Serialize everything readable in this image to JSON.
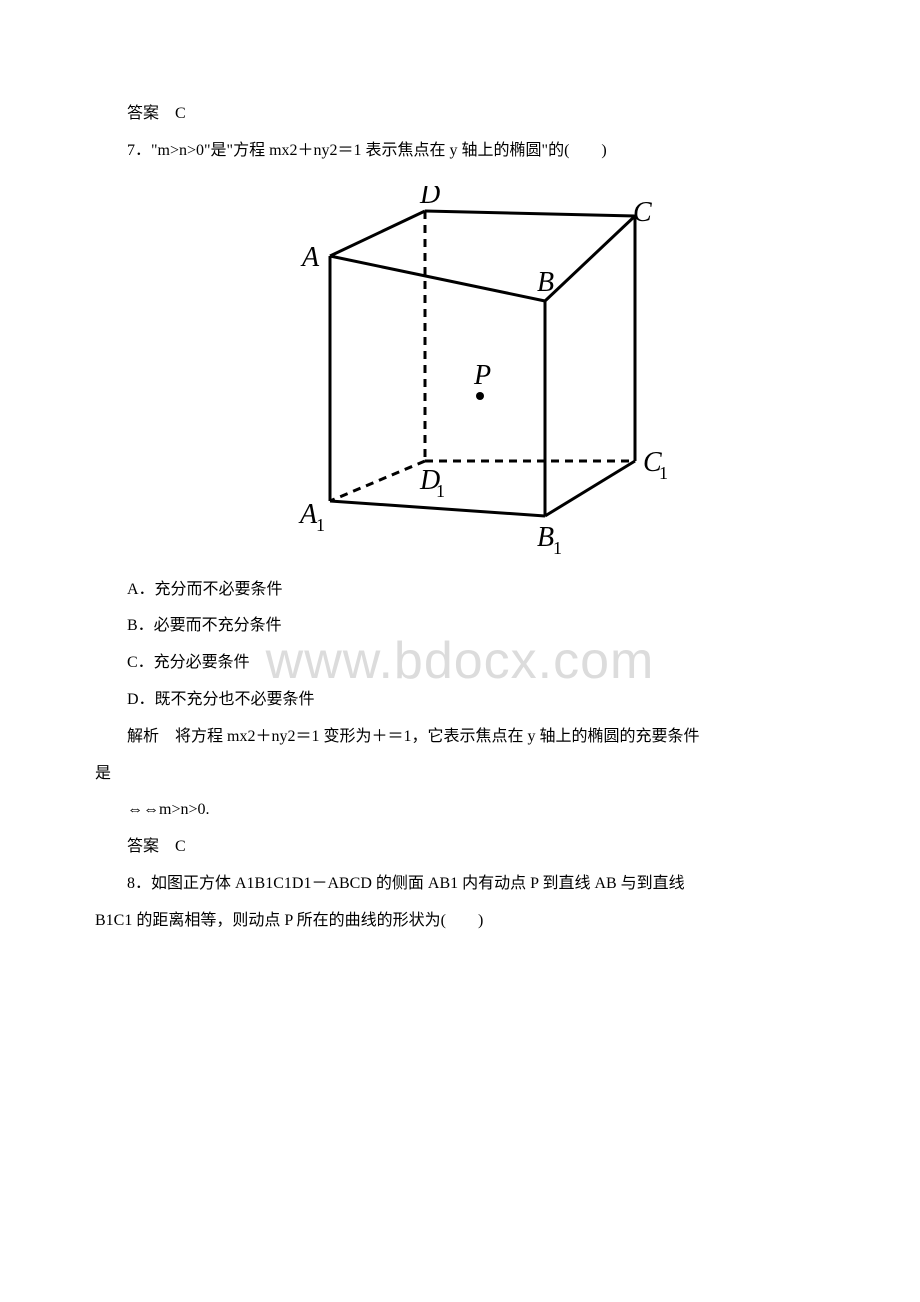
{
  "watermark": "www.bdocx.com",
  "answer6": {
    "label": "答案",
    "value": "C"
  },
  "q7": {
    "text": "7．\"m>n>0\"是\"方程 mx2＋ny2＝1 表示焦点在 y 轴上的椭圆\"的(",
    "blank": "　　",
    "close": ")"
  },
  "options": {
    "a": "A．充分而不必要条件",
    "b": "B．必要而不充分条件",
    "c": "C．充分必要条件",
    "d": "D．既不充分也不必要条件"
  },
  "analysis": {
    "label": "解析",
    "text1": "将方程 mx2＋ny2＝1 变形为＋＝1，它表示焦点在 y 轴上的椭圆的充要条件",
    "text1_cont": "是",
    "text2": "⇔⇔m>n>0."
  },
  "answer7": {
    "label": "答案",
    "value": "C"
  },
  "q8": {
    "text1": "8．如图正方体 A1B1C1D1－ABCD 的侧面 AB1 内有动点 P 到直线 AB 与到直线",
    "text2": "B1C1 的距离相等，则动点 P 所在的曲线的形状为(",
    "blank": "　　",
    "close": ")"
  },
  "cube": {
    "labels": {
      "A": "A",
      "B": "B",
      "C": "C",
      "D": "D",
      "A1": "A",
      "B1": "B",
      "C1": "C",
      "D1": "D",
      "P": "P",
      "sub": "1"
    },
    "colors": {
      "stroke": "#000000",
      "fill": "none"
    },
    "strokeWidth": 3,
    "dashPattern": "8,6",
    "fontFamily": "Times New Roman, serif",
    "fontSize": 28,
    "fontStyle": "italic",
    "subFontSize": 18,
    "pointRadius": 4
  }
}
